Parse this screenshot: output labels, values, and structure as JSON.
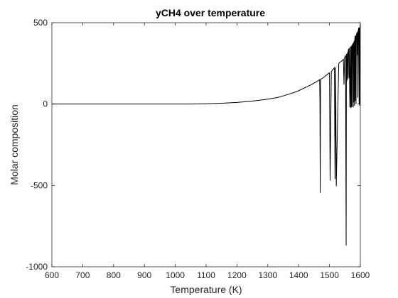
{
  "chart_data": {
    "type": "line",
    "title": "yCH4 over temperature",
    "xlabel": "Temperature (K)",
    "ylabel": "Molar composition",
    "xlim": [
      600,
      1600
    ],
    "ylim": [
      -1000,
      500
    ],
    "xticks": [
      600,
      700,
      800,
      900,
      1000,
      1100,
      1200,
      1300,
      1400,
      1500,
      1600
    ],
    "yticks": [
      -1000,
      -500,
      0,
      500
    ],
    "grid": false,
    "legend": "none",
    "line_color": "#000000",
    "series": [
      {
        "x": [
          600,
          700,
          800,
          900,
          1000,
          1050,
          1100,
          1150,
          1200,
          1250,
          1300,
          1330,
          1350,
          1380,
          1400,
          1420,
          1440,
          1460,
          1468,
          1469,
          1470,
          1471,
          1480,
          1490,
          1498,
          1500,
          1502,
          1506,
          1510,
          1515,
          1516,
          1518,
          1520,
          1522,
          1530,
          1540,
          1545,
          1547,
          1549,
          1550,
          1552,
          1554,
          1555,
          1556,
          1558,
          1559,
          1560,
          1562,
          1563,
          1564,
          1566,
          1568,
          1569,
          1570,
          1571,
          1572,
          1573,
          1574,
          1576,
          1577,
          1578,
          1579,
          1580,
          1581,
          1582,
          1583,
          1584,
          1585,
          1586,
          1587,
          1588,
          1589,
          1590,
          1591,
          1592,
          1593,
          1594,
          1595,
          1596,
          1597,
          1598,
          1599,
          1600
        ],
        "y": [
          0,
          0,
          0,
          0,
          0,
          0,
          2,
          5,
          10,
          18,
          30,
          40,
          50,
          68,
          82,
          100,
          118,
          140,
          150,
          20,
          -545,
          152,
          162,
          178,
          190,
          192,
          -470,
          200,
          210,
          220,
          223,
          -460,
          225,
          -505,
          250,
          265,
          275,
          120,
          285,
          290,
          300,
          -870,
          308,
          140,
          315,
          150,
          320,
          340,
          160,
          345,
          -20,
          352,
          -25,
          355,
          -20,
          360,
          -18,
          365,
          370,
          -20,
          380,
          10,
          390,
          -10,
          400,
          420,
          20,
          420,
          0,
          425,
          430,
          440,
          300,
          445,
          40,
          450,
          460,
          470,
          0,
          470,
          -10,
          480,
          490
        ]
      }
    ]
  }
}
